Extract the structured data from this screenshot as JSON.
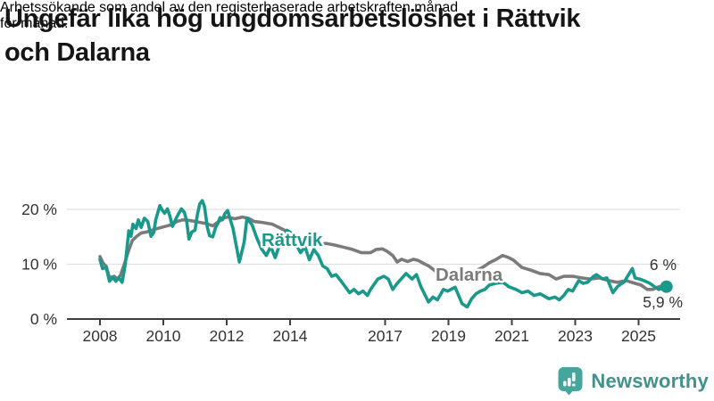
{
  "header": {
    "title_lines": [
      "Ungefär lika hög ungdomsarbetslöshet i Rättvik",
      "och Dalarna"
    ],
    "subtitle_lines": [
      "Arbetssökande som andel av den registerbaserade arbetskraften månad",
      "för månad."
    ]
  },
  "footer": {
    "brand": "Newsworthy"
  },
  "colors": {
    "rattvik": "#19998C",
    "dalarna": "#7B7B7B",
    "title_text": "#151515",
    "axis_text": "#333333",
    "value_label": "#333333",
    "gridline": "#E0E0E0",
    "axis_line": "#3F3F3F",
    "logo_icon": "#46A69D",
    "logo_text": "#43918A",
    "background": "#FFFFFF"
  },
  "chart_data": {
    "type": "line",
    "title": "Ungefär lika hög ungdomsarbetslöshet i Rättvik och Dalarna",
    "subtitle": "Arbetssökande som andel av den registerbaserade arbetskraften månad för månad.",
    "xlabel": "",
    "ylabel": "",
    "grid": "horizontal",
    "legend_position": "inline-labels",
    "xlim": [
      2007.0,
      2026.3
    ],
    "ylim": [
      0,
      23
    ],
    "x_ticks": [
      {
        "year": 2008,
        "label": "2008"
      },
      {
        "year": 2010,
        "label": "2010"
      },
      {
        "year": 2012,
        "label": "2012"
      },
      {
        "year": 2014,
        "label": "2014"
      },
      {
        "year": 2017,
        "label": "2017"
      },
      {
        "year": 2019,
        "label": "2019"
      },
      {
        "year": 2021,
        "label": "2021"
      },
      {
        "year": 2023,
        "label": "2023"
      },
      {
        "year": 2025,
        "label": "2025"
      }
    ],
    "y_ticks": [
      {
        "value": 0,
        "label": "0 %"
      },
      {
        "value": 10,
        "label": "10 %"
      },
      {
        "value": 20,
        "label": "20 %"
      }
    ],
    "series": [
      {
        "name": "Dalarna",
        "color_key": "dalarna",
        "end_label": "6 %",
        "end_value": 6.0,
        "end_dot": false,
        "points": [
          [
            2008.0,
            11.4
          ],
          [
            2008.1,
            10.2
          ],
          [
            2008.2,
            9.6
          ],
          [
            2008.3,
            7.5
          ],
          [
            2008.45,
            7.8
          ],
          [
            2008.55,
            7.3
          ],
          [
            2008.65,
            8.0
          ],
          [
            2008.78,
            10.2
          ],
          [
            2008.9,
            12.4
          ],
          [
            2009.02,
            14.3
          ],
          [
            2009.16,
            15.1
          ],
          [
            2009.3,
            15.7
          ],
          [
            2009.49,
            15.9
          ],
          [
            2009.68,
            16.3
          ],
          [
            2009.87,
            16.6
          ],
          [
            2010.06,
            16.9
          ],
          [
            2010.25,
            17.2
          ],
          [
            2010.43,
            17.8
          ],
          [
            2010.62,
            18.1
          ],
          [
            2010.81,
            18.0
          ],
          [
            2011.0,
            17.8
          ],
          [
            2011.18,
            17.6
          ],
          [
            2011.37,
            17.4
          ],
          [
            2011.56,
            17.0
          ],
          [
            2011.75,
            17.8
          ],
          [
            2011.94,
            18.5
          ],
          [
            2012.03,
            18.6
          ],
          [
            2012.26,
            18.3
          ],
          [
            2012.49,
            18.6
          ],
          [
            2012.68,
            18.4
          ],
          [
            2012.87,
            17.8
          ],
          [
            2013.15,
            17.6
          ],
          [
            2013.44,
            17.3
          ],
          [
            2013.72,
            16.5
          ],
          [
            2014.0,
            15.7
          ],
          [
            2014.28,
            14.6
          ],
          [
            2014.56,
            14.0
          ],
          [
            2014.85,
            13.5
          ],
          [
            2015.13,
            13.8
          ],
          [
            2015.41,
            13.5
          ],
          [
            2015.69,
            13.1
          ],
          [
            2015.97,
            12.7
          ],
          [
            2016.25,
            12.1
          ],
          [
            2016.54,
            12.1
          ],
          [
            2016.72,
            12.7
          ],
          [
            2016.91,
            12.8
          ],
          [
            2017.05,
            12.4
          ],
          [
            2017.24,
            11.6
          ],
          [
            2017.38,
            10.4
          ],
          [
            2017.52,
            10.9
          ],
          [
            2017.71,
            10.5
          ],
          [
            2017.9,
            10.9
          ],
          [
            2018.04,
            10.7
          ],
          [
            2018.23,
            10.1
          ],
          [
            2018.37,
            9.7
          ],
          [
            2018.51,
            9.1
          ],
          [
            2018.61,
            8.6
          ],
          [
            2018.9,
            8.8
          ],
          [
            2019.2,
            8.4
          ],
          [
            2019.5,
            8.2
          ],
          [
            2019.8,
            8.6
          ],
          [
            2020.1,
            9.5
          ],
          [
            2020.3,
            10.3
          ],
          [
            2020.48,
            10.8
          ],
          [
            2020.71,
            11.6
          ],
          [
            2020.9,
            11.2
          ],
          [
            2021.04,
            10.8
          ],
          [
            2021.32,
            9.4
          ],
          [
            2021.61,
            8.9
          ],
          [
            2021.89,
            8.3
          ],
          [
            2022.17,
            8.1
          ],
          [
            2022.4,
            7.3
          ],
          [
            2022.64,
            7.8
          ],
          [
            2022.92,
            7.8
          ],
          [
            2023.2,
            7.5
          ],
          [
            2023.48,
            7.3
          ],
          [
            2023.77,
            7.5
          ],
          [
            2024.05,
            7.0
          ],
          [
            2024.33,
            6.7
          ],
          [
            2024.61,
            7.0
          ],
          [
            2024.89,
            6.5
          ],
          [
            2025.08,
            6.2
          ],
          [
            2025.27,
            5.4
          ],
          [
            2025.45,
            5.4
          ],
          [
            2025.64,
            5.9
          ],
          [
            2025.82,
            6.0
          ]
        ]
      },
      {
        "name": "Rättvik",
        "color_key": "rattvik",
        "end_label": "5,9 %",
        "end_value": 5.9,
        "end_dot": true,
        "points": [
          [
            2008.0,
            10.9
          ],
          [
            2008.08,
            9.2
          ],
          [
            2008.2,
            9.4
          ],
          [
            2008.3,
            6.9
          ],
          [
            2008.4,
            7.6
          ],
          [
            2008.5,
            6.9
          ],
          [
            2008.6,
            7.5
          ],
          [
            2008.7,
            6.7
          ],
          [
            2008.8,
            10.0
          ],
          [
            2008.91,
            16.1
          ],
          [
            2008.98,
            15.1
          ],
          [
            2009.04,
            17.3
          ],
          [
            2009.14,
            16.5
          ],
          [
            2009.21,
            18.1
          ],
          [
            2009.3,
            16.7
          ],
          [
            2009.4,
            18.4
          ],
          [
            2009.51,
            17.8
          ],
          [
            2009.61,
            15.1
          ],
          [
            2009.7,
            15.8
          ],
          [
            2009.76,
            18.1
          ],
          [
            2009.89,
            20.7
          ],
          [
            2009.96,
            19.9
          ],
          [
            2010.04,
            19.3
          ],
          [
            2010.13,
            20.1
          ],
          [
            2010.2,
            18.9
          ],
          [
            2010.29,
            16.9
          ],
          [
            2010.38,
            18.1
          ],
          [
            2010.48,
            19.2
          ],
          [
            2010.57,
            20.1
          ],
          [
            2010.66,
            19.5
          ],
          [
            2010.73,
            18.1
          ],
          [
            2010.81,
            14.6
          ],
          [
            2010.9,
            15.9
          ],
          [
            2011.0,
            16.2
          ],
          [
            2011.07,
            18.9
          ],
          [
            2011.15,
            21.0
          ],
          [
            2011.23,
            21.6
          ],
          [
            2011.3,
            20.5
          ],
          [
            2011.39,
            16.7
          ],
          [
            2011.46,
            15.2
          ],
          [
            2011.56,
            15.0
          ],
          [
            2011.65,
            16.7
          ],
          [
            2011.73,
            17.6
          ],
          [
            2011.79,
            18.5
          ],
          [
            2011.86,
            18.1
          ],
          [
            2011.94,
            19.2
          ],
          [
            2012.03,
            19.8
          ],
          [
            2012.2,
            16.5
          ],
          [
            2012.4,
            10.4
          ],
          [
            2012.55,
            14.0
          ],
          [
            2012.64,
            18.4
          ],
          [
            2012.8,
            17.2
          ],
          [
            2012.95,
            14.8
          ],
          [
            2013.1,
            12.8
          ],
          [
            2013.25,
            11.6
          ],
          [
            2013.39,
            13.2
          ],
          [
            2013.53,
            11.2
          ],
          [
            2013.76,
            15.1
          ],
          [
            2013.9,
            16.2
          ],
          [
            2014.04,
            15.7
          ],
          [
            2014.2,
            13.5
          ],
          [
            2014.33,
            12.1
          ],
          [
            2014.47,
            13.2
          ],
          [
            2014.61,
            10.8
          ],
          [
            2014.75,
            12.7
          ],
          [
            2014.89,
            11.6
          ],
          [
            2015.03,
            9.7
          ],
          [
            2015.17,
            9.2
          ],
          [
            2015.31,
            7.8
          ],
          [
            2015.45,
            8.1
          ],
          [
            2015.6,
            7.0
          ],
          [
            2015.74,
            5.9
          ],
          [
            2015.88,
            4.8
          ],
          [
            2016.02,
            5.4
          ],
          [
            2016.16,
            4.6
          ],
          [
            2016.3,
            5.1
          ],
          [
            2016.44,
            4.3
          ],
          [
            2016.54,
            5.4
          ],
          [
            2016.77,
            7.3
          ],
          [
            2016.96,
            7.8
          ],
          [
            2017.1,
            7.3
          ],
          [
            2017.24,
            5.4
          ],
          [
            2017.38,
            6.5
          ],
          [
            2017.66,
            8.3
          ],
          [
            2017.85,
            7.3
          ],
          [
            2017.99,
            8.1
          ],
          [
            2018.13,
            5.9
          ],
          [
            2018.37,
            3.1
          ],
          [
            2018.51,
            4.0
          ],
          [
            2018.65,
            3.5
          ],
          [
            2018.84,
            5.4
          ],
          [
            2018.98,
            5.1
          ],
          [
            2019.21,
            5.8
          ],
          [
            2019.43,
            2.8
          ],
          [
            2019.59,
            2.2
          ],
          [
            2019.73,
            3.7
          ],
          [
            2019.87,
            4.6
          ],
          [
            2020.01,
            5.1
          ],
          [
            2020.15,
            5.4
          ],
          [
            2020.29,
            6.2
          ],
          [
            2020.48,
            6.5
          ],
          [
            2020.71,
            6.7
          ],
          [
            2020.84,
            6.2
          ],
          [
            2020.9,
            5.9
          ],
          [
            2021.13,
            5.4
          ],
          [
            2021.32,
            4.8
          ],
          [
            2021.51,
            5.1
          ],
          [
            2021.7,
            4.3
          ],
          [
            2021.89,
            4.6
          ],
          [
            2022.17,
            3.7
          ],
          [
            2022.36,
            4.0
          ],
          [
            2022.5,
            3.5
          ],
          [
            2022.64,
            4.3
          ],
          [
            2022.78,
            5.4
          ],
          [
            2022.92,
            5.1
          ],
          [
            2023.11,
            7.0
          ],
          [
            2023.25,
            6.5
          ],
          [
            2023.39,
            6.7
          ],
          [
            2023.58,
            7.8
          ],
          [
            2023.67,
            8.1
          ],
          [
            2023.86,
            7.3
          ],
          [
            2024.0,
            7.5
          ],
          [
            2024.19,
            4.8
          ],
          [
            2024.33,
            5.9
          ],
          [
            2024.55,
            6.8
          ],
          [
            2024.8,
            9.2
          ],
          [
            2024.89,
            7.5
          ],
          [
            2025.03,
            7.3
          ],
          [
            2025.17,
            7.0
          ],
          [
            2025.36,
            6.5
          ],
          [
            2025.5,
            5.9
          ],
          [
            2025.64,
            5.4
          ],
          [
            2025.88,
            5.9
          ]
        ]
      }
    ]
  }
}
